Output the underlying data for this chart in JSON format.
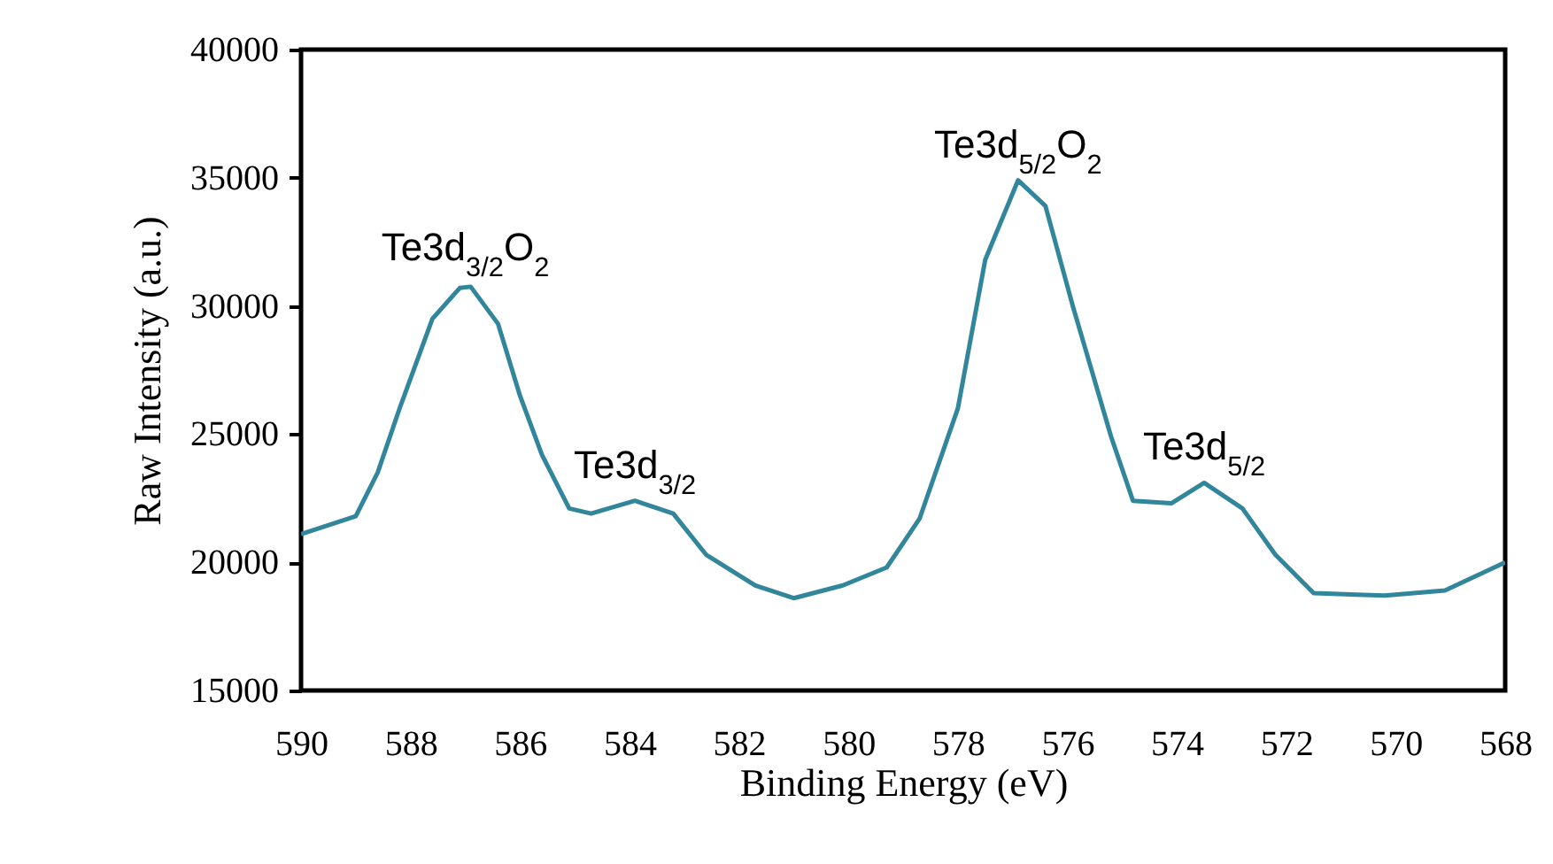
{
  "chart_data": {
    "type": "line",
    "xlabel": "Binding Energy (eV)",
    "ylabel": "Raw Intensity (a.u.)",
    "xlim": [
      590,
      568
    ],
    "xticks": [
      590,
      588,
      586,
      584,
      582,
      580,
      578,
      576,
      574,
      572,
      570,
      568
    ],
    "ylim": [
      15000,
      40000
    ],
    "yticks": [
      15000,
      20000,
      25000,
      30000,
      35000,
      40000
    ],
    "grid": false,
    "legend": false,
    "marker": "none",
    "line_style": "solid",
    "annotations": [
      {
        "text": "Te3d$_{3/2}$O$_{2}$",
        "x": 587.0,
        "y": 30900
      },
      {
        "text": "Te3d$_{3/2}$",
        "x": 583.9,
        "y": 22400
      },
      {
        "text": "Te3d$_{5/2}$O$_{2}$",
        "x": 576.9,
        "y": 34900
      },
      {
        "text": "Te3d$_{5/2}$",
        "x": 573.5,
        "y": 23100
      }
    ],
    "x": [
      590.0,
      589.0,
      588.6,
      588.2,
      587.6,
      587.1,
      586.9,
      586.4,
      586.0,
      585.6,
      585.1,
      584.7,
      583.9,
      583.2,
      582.6,
      581.7,
      581.0,
      580.1,
      579.3,
      578.7,
      578.0,
      577.5,
      576.9,
      576.4,
      575.9,
      575.2,
      574.8,
      574.1,
      573.5,
      572.8,
      572.2,
      571.5,
      570.2,
      569.1,
      568.0
    ],
    "series": [
      {
        "color": "#31869b",
        "values": [
          21100,
          21800,
          23500,
          26000,
          29500,
          30700,
          30750,
          29300,
          26500,
          24200,
          22100,
          21900,
          22400,
          21900,
          20300,
          19100,
          18600,
          19100,
          19800,
          21700,
          26000,
          31800,
          34900,
          33900,
          30000,
          24900,
          22400,
          22300,
          23100,
          22100,
          20300,
          18800,
          18700,
          18900,
          20000
        ]
      }
    ]
  }
}
